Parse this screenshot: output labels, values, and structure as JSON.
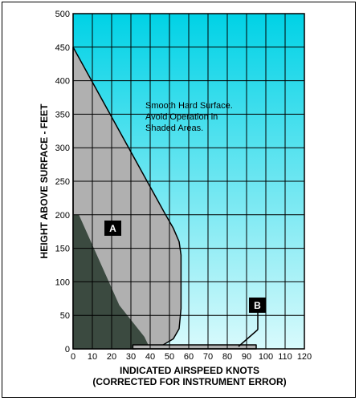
{
  "chart_data": {
    "type": "area",
    "xlabel_line1": "INDICATED AIRSPEED KNOTS",
    "xlabel_line2": "(CORRECTED FOR INSTRUMENT ERROR)",
    "ylabel": "HEIGHT ABOVE SURFACE - FEET",
    "xlim": [
      0,
      120
    ],
    "ylim": [
      0,
      500
    ],
    "x_ticks": [
      0,
      10,
      20,
      30,
      40,
      50,
      60,
      70,
      80,
      90,
      100,
      110,
      120
    ],
    "y_ticks": [
      0,
      50,
      100,
      150,
      200,
      250,
      300,
      350,
      400,
      450,
      500
    ],
    "grid": true,
    "annotation_lines": [
      "Smooth Hard Surface.",
      "Avoid Operation in",
      "Shaded Areas."
    ],
    "regions": [
      {
        "label": "A",
        "color": "#b0b0b0",
        "points": [
          [
            0,
            450
          ],
          [
            48,
            200
          ],
          [
            52,
            180
          ],
          [
            55,
            160
          ],
          [
            56,
            140
          ],
          [
            56,
            60
          ],
          [
            55,
            30
          ],
          [
            52,
            15
          ],
          [
            45,
            3
          ],
          [
            32,
            0
          ],
          [
            0,
            0
          ]
        ]
      },
      {
        "label": "",
        "color": "#3b4a40",
        "points": [
          [
            0,
            200
          ],
          [
            3,
            200
          ],
          [
            24,
            65
          ],
          [
            37,
            18
          ],
          [
            40,
            0
          ],
          [
            0,
            0
          ]
        ]
      },
      {
        "label": "B",
        "color": "#b0b0b0",
        "points": [
          [
            31,
            0
          ],
          [
            31,
            6
          ],
          [
            95,
            6
          ],
          [
            95,
            0
          ]
        ]
      }
    ],
    "colors": {
      "sky_top": "#00d2e6",
      "sky_bottom": "#d8fafc",
      "shade": "#b0b0b0",
      "dark": "#3b4a40",
      "badge": "#000000"
    }
  }
}
